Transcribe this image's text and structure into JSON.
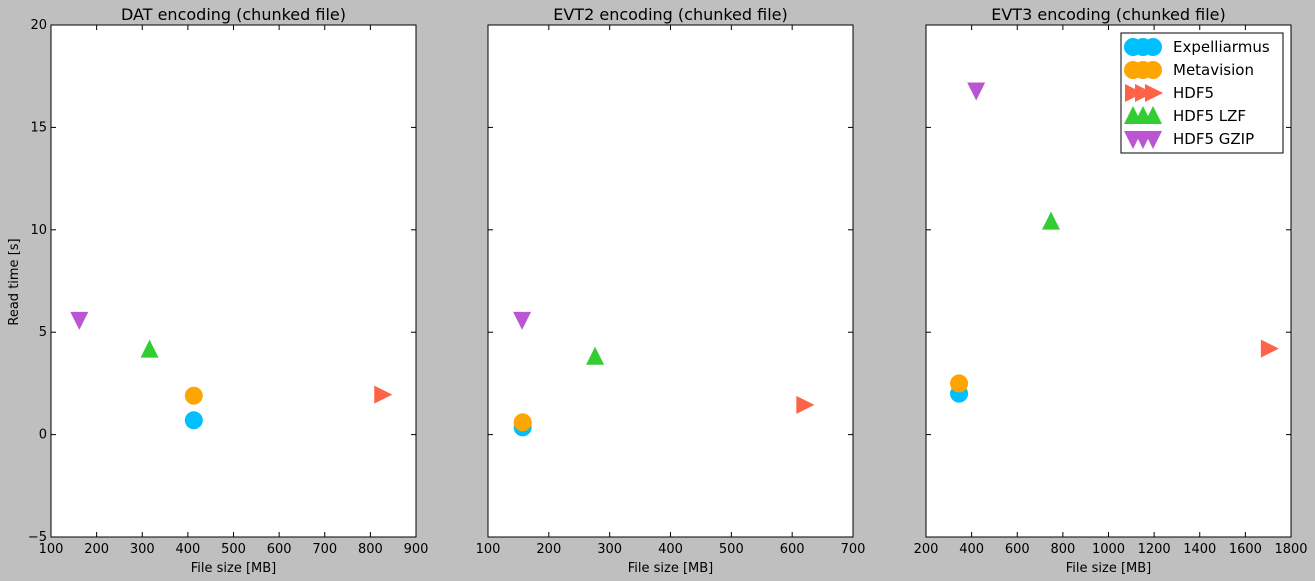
{
  "figure": {
    "ylabel": "Read time [s]",
    "ylim": [
      -5,
      20
    ],
    "yticks": [
      "−5",
      "0",
      "5",
      "10",
      "15",
      "20"
    ],
    "background": "#bfbfbf"
  },
  "legend": {
    "placement": "top-right of third panel",
    "entries": [
      {
        "name": "Expelliarmus",
        "marker": "circle",
        "color": "#00bfff"
      },
      {
        "name": "Metavision",
        "marker": "circle",
        "color": "#ffa500"
      },
      {
        "name": "HDF5",
        "marker": "triangle-right",
        "color": "#ff6347"
      },
      {
        "name": "HDF5 LZF",
        "marker": "triangle-up",
        "color": "#32cd32"
      },
      {
        "name": "HDF5 GZIP",
        "marker": "triangle-down",
        "color": "#ba55d3"
      }
    ]
  },
  "chart_data": [
    {
      "type": "scatter",
      "title": "DAT encoding (chunked file)",
      "xlabel": "File size [MB]",
      "ylabel": "Read time [s]",
      "xlim": [
        100,
        900
      ],
      "ylim": [
        -5,
        20
      ],
      "xticks": [
        "100",
        "200",
        "300",
        "400",
        "500",
        "600",
        "700",
        "800",
        "900"
      ],
      "grid": false,
      "series": [
        {
          "name": "Expelliarmus",
          "x": [
            413
          ],
          "y": [
            0.7
          ]
        },
        {
          "name": "Metavision",
          "x": [
            413
          ],
          "y": [
            1.9
          ]
        },
        {
          "name": "HDF5",
          "x": [
            826
          ],
          "y": [
            1.95
          ]
        },
        {
          "name": "HDF5 LZF",
          "x": [
            316
          ],
          "y": [
            4.15
          ]
        },
        {
          "name": "HDF5 GZIP",
          "x": [
            162
          ],
          "y": [
            5.6
          ]
        }
      ]
    },
    {
      "type": "scatter",
      "title": "EVT2 encoding (chunked file)",
      "xlabel": "File size [MB]",
      "ylabel": "Read time [s]",
      "xlim": [
        100,
        700
      ],
      "ylim": [
        -5,
        20
      ],
      "xticks": [
        "100",
        "200",
        "300",
        "400",
        "500",
        "600",
        "700"
      ],
      "grid": false,
      "series": [
        {
          "name": "Expelliarmus",
          "x": [
            157
          ],
          "y": [
            0.35
          ]
        },
        {
          "name": "Metavision",
          "x": [
            157
          ],
          "y": [
            0.6
          ]
        },
        {
          "name": "HDF5",
          "x": [
            620
          ],
          "y": [
            1.45
          ]
        },
        {
          "name": "HDF5 LZF",
          "x": [
            276
          ],
          "y": [
            3.8
          ]
        },
        {
          "name": "HDF5 GZIP",
          "x": [
            156
          ],
          "y": [
            5.6
          ]
        }
      ]
    },
    {
      "type": "scatter",
      "title": "EVT3 encoding (chunked file)",
      "xlabel": "File size [MB]",
      "ylabel": "Read time [s]",
      "xlim": [
        200,
        1800
      ],
      "ylim": [
        -5,
        20
      ],
      "xticks": [
        "200",
        "400",
        "600",
        "800",
        "1000",
        "1200",
        "1400",
        "1600",
        "1800"
      ],
      "grid": false,
      "series": [
        {
          "name": "Expelliarmus",
          "x": [
            345
          ],
          "y": [
            2.0
          ]
        },
        {
          "name": "Metavision",
          "x": [
            345
          ],
          "y": [
            2.5
          ]
        },
        {
          "name": "HDF5",
          "x": [
            1703
          ],
          "y": [
            4.2
          ]
        },
        {
          "name": "HDF5 LZF",
          "x": [
            748
          ],
          "y": [
            10.4
          ]
        },
        {
          "name": "HDF5 GZIP",
          "x": [
            420
          ],
          "y": [
            16.8
          ]
        }
      ]
    }
  ]
}
